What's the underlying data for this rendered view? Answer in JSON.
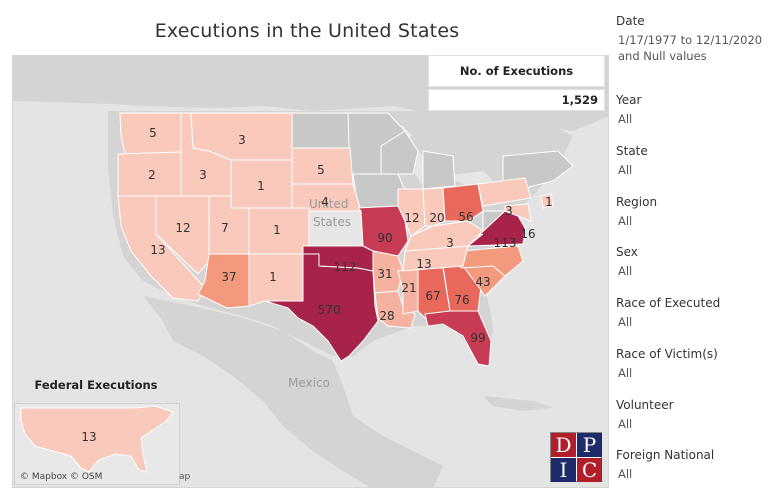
{
  "title": "Executions in the United States",
  "kpi": {
    "label": "No. of Executions",
    "value": "1,529"
  },
  "federal": {
    "title": "Federal Executions",
    "value": "13"
  },
  "attribution": "© Mapbox © OSM",
  "attribution_fragment": "ap",
  "place_labels": {
    "country_partial_1": "United",
    "country_partial_2": "States",
    "mexico": "Mexico"
  },
  "logo": {
    "letters": [
      "D",
      "P",
      "I",
      "C"
    ]
  },
  "colors": {
    "lightest": "#f9c9bc",
    "light": "#f6b2a0",
    "medium": "#f39a7e",
    "mid": "#e8695b",
    "dark": "#c73b55",
    "darkest": "#a8234a",
    "land": "#d4d4d4",
    "water": "#e6e6e6",
    "no_data": "#c8c8c8"
  },
  "filters": [
    {
      "label": "Date",
      "value": "1/17/1977 to 12/11/2020 and Null values"
    },
    {
      "label": "Year",
      "value": "All"
    },
    {
      "label": "State",
      "value": "All"
    },
    {
      "label": "Region",
      "value": "All"
    },
    {
      "label": "Sex",
      "value": "All"
    },
    {
      "label": "Race of Executed",
      "value": "All"
    },
    {
      "label": "Race of Victim(s)",
      "value": "All"
    },
    {
      "label": "Volunteer",
      "value": "All"
    },
    {
      "label": "Foreign National",
      "value": "All"
    }
  ],
  "states": [
    {
      "name": "Washington",
      "count": "5"
    },
    {
      "name": "Oregon",
      "count": "2"
    },
    {
      "name": "Idaho",
      "count": "3"
    },
    {
      "name": "Montana",
      "count": "3"
    },
    {
      "name": "Wyoming",
      "count": "1"
    },
    {
      "name": "South Dakota",
      "count": "5"
    },
    {
      "name": "Nebraska",
      "count": "4"
    },
    {
      "name": "California",
      "count": "13"
    },
    {
      "name": "Nevada",
      "count": "12"
    },
    {
      "name": "Utah",
      "count": "7"
    },
    {
      "name": "Colorado",
      "count": "1"
    },
    {
      "name": "Arizona",
      "count": "37"
    },
    {
      "name": "New Mexico",
      "count": "1"
    },
    {
      "name": "Texas",
      "count": "570"
    },
    {
      "name": "Oklahoma",
      "count": "112"
    },
    {
      "name": "Missouri",
      "count": "90"
    },
    {
      "name": "Arkansas",
      "count": "31"
    },
    {
      "name": "Louisiana",
      "count": "28"
    },
    {
      "name": "Mississippi",
      "count": "21"
    },
    {
      "name": "Alabama",
      "count": "67"
    },
    {
      "name": "Georgia",
      "count": "76"
    },
    {
      "name": "Florida",
      "count": "99"
    },
    {
      "name": "South Carolina",
      "count": "43"
    },
    {
      "name": "Tennessee",
      "count": "13"
    },
    {
      "name": "Kentucky",
      "count": "3"
    },
    {
      "name": "Illinois",
      "count": "12"
    },
    {
      "name": "Indiana",
      "count": "20"
    },
    {
      "name": "Ohio",
      "count": "56"
    },
    {
      "name": "Pennsylvania",
      "count": "3"
    },
    {
      "name": "Virginia",
      "count": "113"
    },
    {
      "name": "Maryland",
      "count": "16"
    },
    {
      "name": "Delaware",
      "count": "1"
    }
  ]
}
